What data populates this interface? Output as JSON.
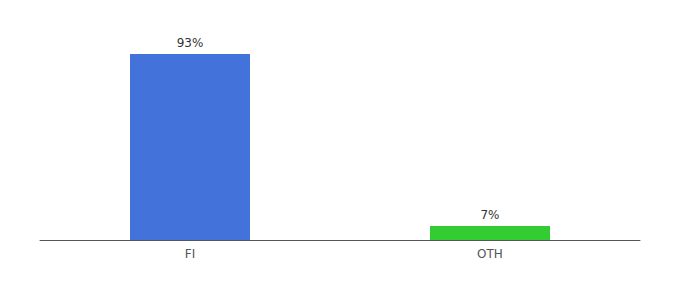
{
  "chart_data": {
    "type": "bar",
    "categories": [
      "FI",
      "OTH"
    ],
    "values": [
      93,
      7
    ],
    "colors": [
      "#4472db",
      "#33cc33"
    ],
    "value_labels": [
      "93%",
      "7%"
    ],
    "data_labels": true,
    "ylim": [
      0,
      100
    ],
    "grid": false,
    "tick_labels": "x"
  }
}
